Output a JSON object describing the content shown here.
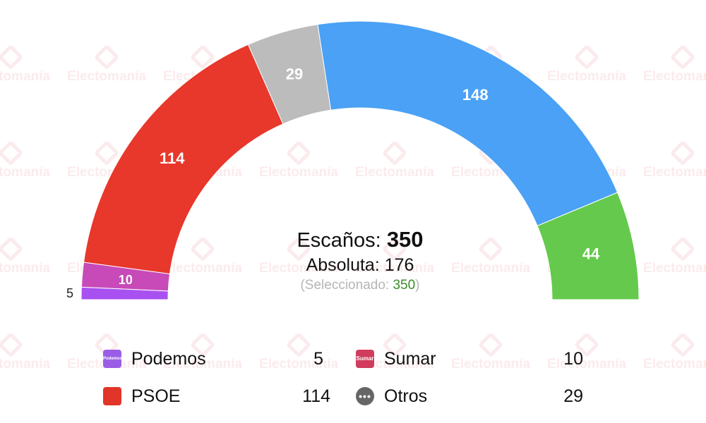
{
  "watermark_text": "Electomanía",
  "chart_data": {
    "type": "hemicycle",
    "total_seats": 350,
    "majority": 176,
    "segments": [
      {
        "party": "Podemos",
        "seats": 5,
        "color": "#a851f0"
      },
      {
        "party": "Sumar",
        "seats": 10,
        "color": "#c74ab8"
      },
      {
        "party": "PSOE",
        "seats": 114,
        "color": "#e8372b"
      },
      {
        "party": "Otros",
        "seats": 29,
        "color": "#bcbcbc"
      },
      {
        "party": "",
        "seats": 148,
        "color": "#4aa1f5"
      },
      {
        "party": "",
        "seats": 44,
        "color": "#64c94c"
      }
    ]
  },
  "center": {
    "escanos_label": "Escaños:",
    "escanos_value": "350",
    "absoluta_label": "Absoluta:",
    "absoluta_value": "176",
    "seleccionado_label": "(Seleccionado:",
    "seleccionado_value": "350",
    "seleccionado_close": ")"
  },
  "legend": [
    {
      "name": "Podemos",
      "seats": "5",
      "icon": "podemos-logo-icon",
      "icon_text": "Podemos",
      "color": "#9b5de5"
    },
    {
      "name": "Sumar",
      "seats": "10",
      "icon": "sumar-logo-icon",
      "icon_text": "Sumar",
      "color": "#d03c5d"
    },
    {
      "name": "PSOE",
      "seats": "114",
      "icon": "psoe-logo-icon",
      "icon_text": "",
      "color": "#e1352a"
    },
    {
      "name": "Otros",
      "seats": "29",
      "icon": "ellipsis-icon",
      "icon_text": "•••",
      "color": "#666666"
    }
  ]
}
